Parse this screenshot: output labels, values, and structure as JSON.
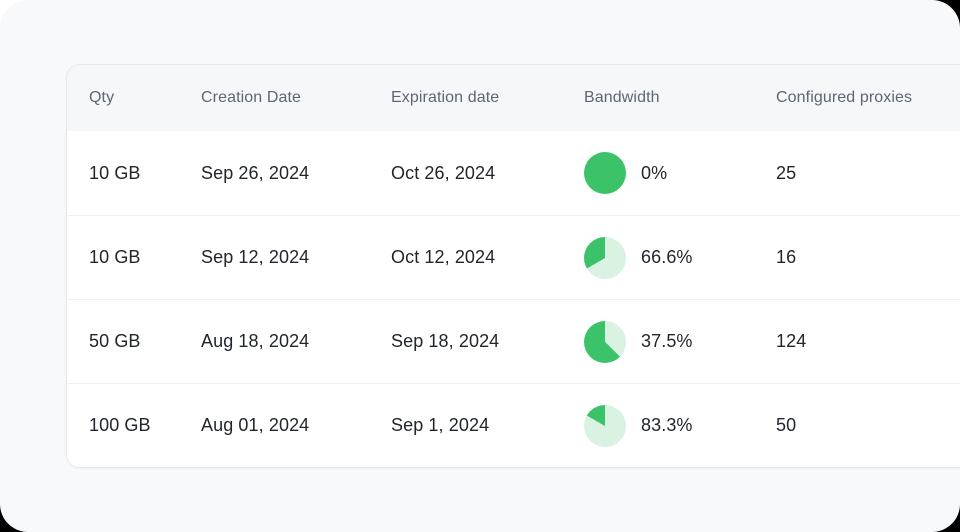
{
  "colors": {
    "pie_used_light": "#d9f2e1",
    "pie_remaining_green": "#3cc36a"
  },
  "table": {
    "columns": [
      {
        "key": "qty",
        "label": "Qty"
      },
      {
        "key": "creation_date",
        "label": "Creation Date"
      },
      {
        "key": "expiration_date",
        "label": "Expiration date"
      },
      {
        "key": "bandwidth",
        "label": "Bandwidth"
      },
      {
        "key": "configured_proxies",
        "label": "Configured proxies"
      }
    ],
    "rows": [
      {
        "qty": "10 GB",
        "creation_date": "Sep 26, 2024",
        "expiration_date": "Oct 26, 2024",
        "bandwidth_percent": 0,
        "bandwidth_label": "0%",
        "configured_proxies": "25"
      },
      {
        "qty": "10 GB",
        "creation_date": "Sep 12, 2024",
        "expiration_date": "Oct 12, 2024",
        "bandwidth_percent": 66.6,
        "bandwidth_label": "66.6%",
        "configured_proxies": "16"
      },
      {
        "qty": "50 GB",
        "creation_date": "Aug 18, 2024",
        "expiration_date": "Sep 18, 2024",
        "bandwidth_percent": 37.5,
        "bandwidth_label": "37.5%",
        "configured_proxies": "124"
      },
      {
        "qty": "100 GB",
        "creation_date": "Aug 01, 2024",
        "expiration_date": "Sep 1, 2024",
        "bandwidth_percent": 83.3,
        "bandwidth_label": "83.3%",
        "configured_proxies": "50"
      }
    ]
  }
}
